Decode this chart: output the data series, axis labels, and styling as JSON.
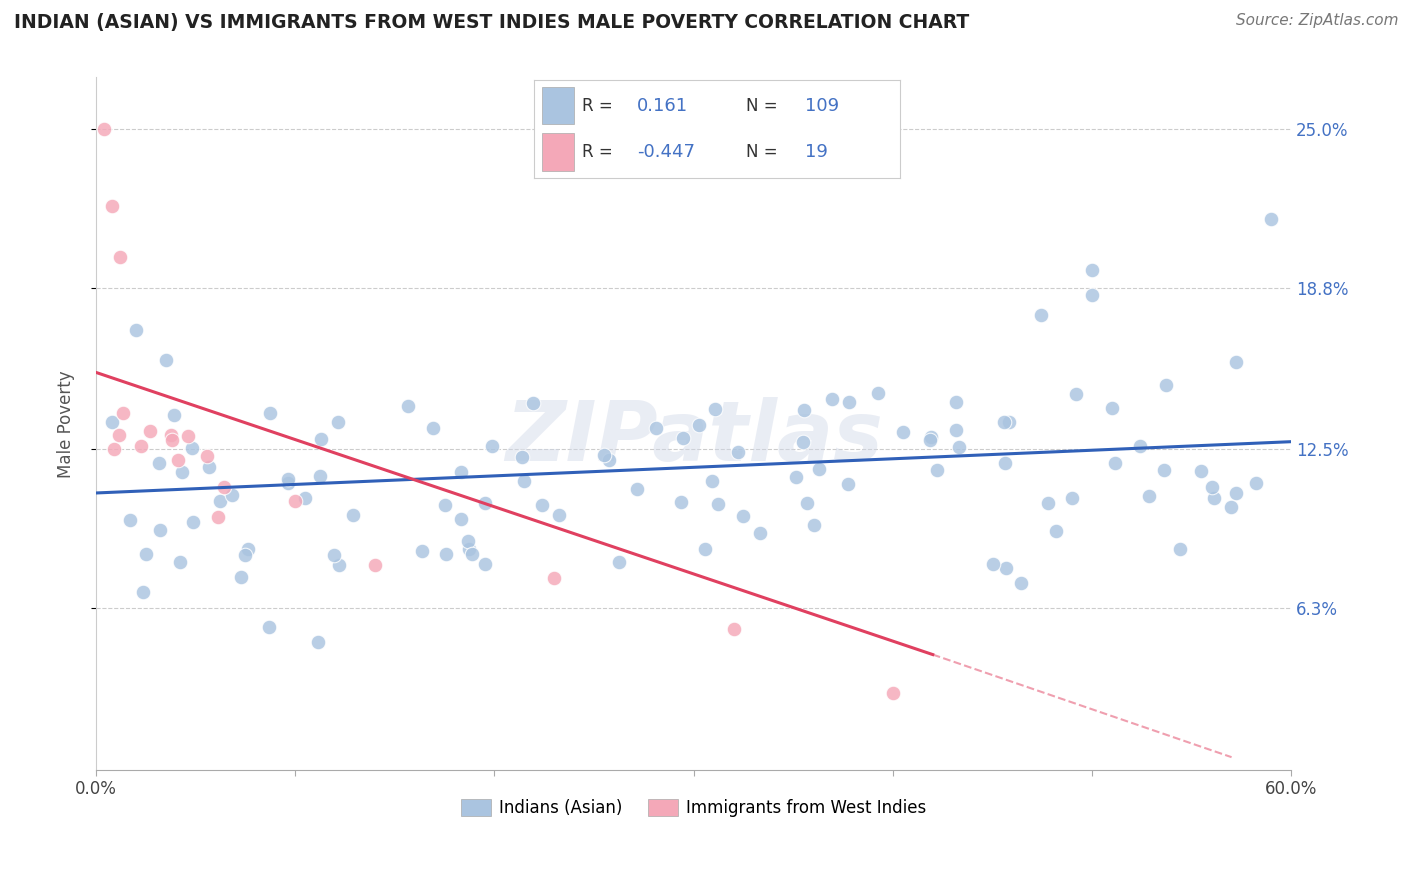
{
  "title": "INDIAN (ASIAN) VS IMMIGRANTS FROM WEST INDIES MALE POVERTY CORRELATION CHART",
  "source": "Source: ZipAtlas.com",
  "ylabel": "Male Poverty",
  "xlim": [
    0.0,
    60.0
  ],
  "ylim": [
    0.0,
    27.0
  ],
  "ytick_values": [
    6.3,
    12.5,
    18.8,
    25.0
  ],
  "ytick_labels": [
    "6.3%",
    "12.5%",
    "18.8%",
    "25.0%"
  ],
  "blue_color": "#aac4e0",
  "pink_color": "#f4a8b8",
  "blue_line_color": "#3060b8",
  "pink_line_color": "#e04060",
  "R_blue": 0.161,
  "N_blue": 109,
  "R_pink": -0.447,
  "N_pink": 19,
  "legend_label_blue": "Indians (Asian)",
  "legend_label_pink": "Immigrants from West Indies",
  "watermark": "ZIPatlas",
  "blue_trend_x0": 0.0,
  "blue_trend_y0": 10.8,
  "blue_trend_x1": 60.0,
  "blue_trend_y1": 12.8,
  "pink_trend_x0": 0.0,
  "pink_trend_y0": 15.5,
  "pink_trend_x1": 42.0,
  "pink_trend_y1": 4.5,
  "pink_dash_x0": 42.0,
  "pink_dash_y0": 4.5,
  "pink_dash_x1": 57.0,
  "pink_dash_y1": 0.5
}
